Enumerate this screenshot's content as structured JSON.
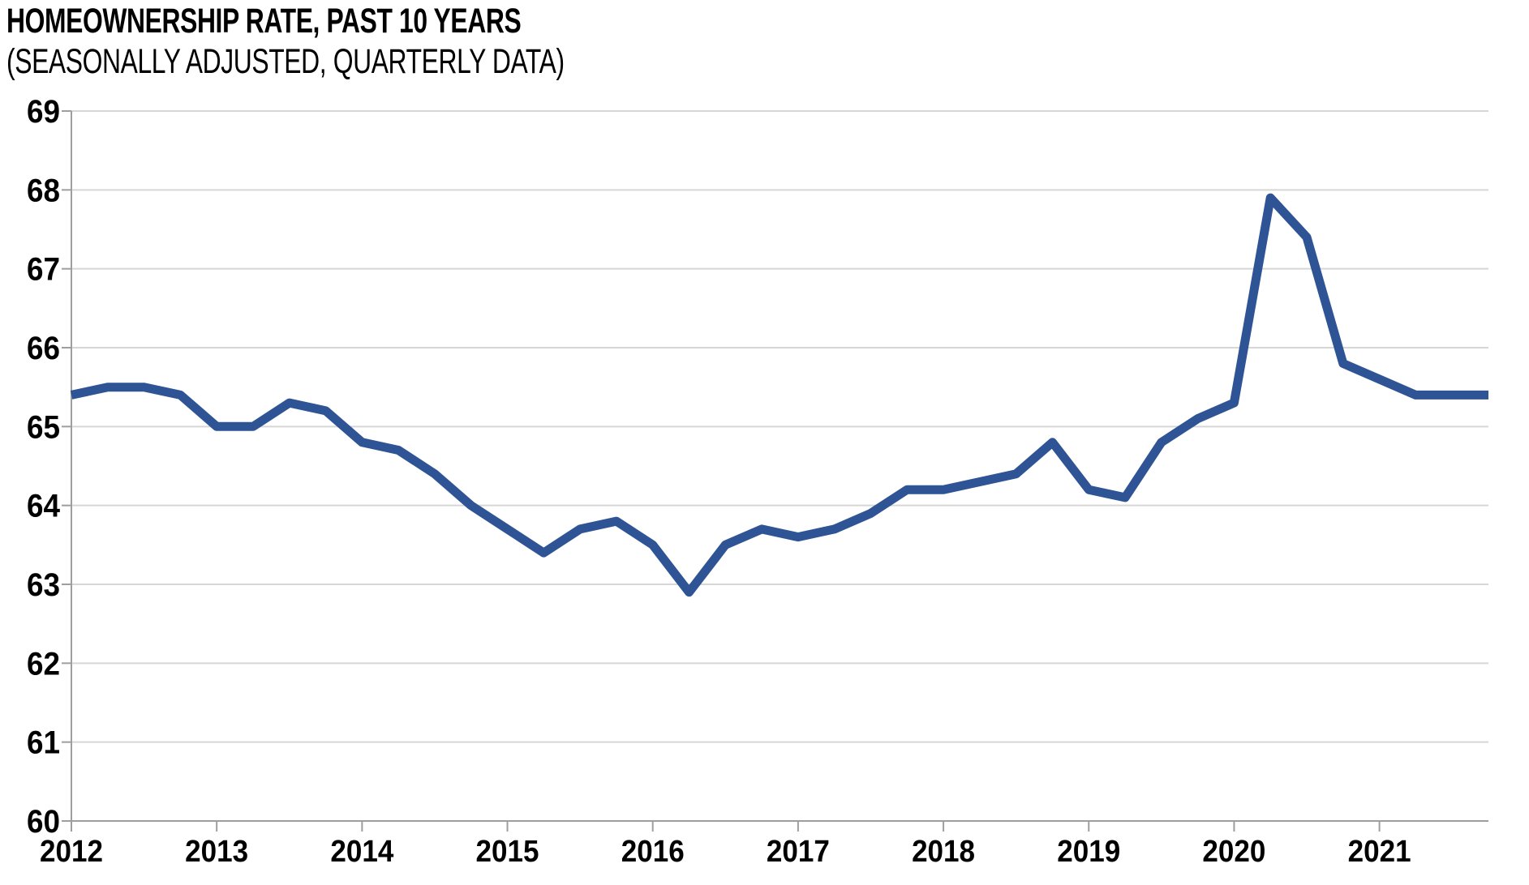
{
  "chart": {
    "title": "HOMEOWNERSHIP RATE, PAST 10 YEARS",
    "subtitle": "(SEASONALLY ADJUSTED, QUARTERLY DATA)"
  },
  "chart_data": {
    "type": "line",
    "title": "HOMEOWNERSHIP RATE, PAST 10 YEARS",
    "subtitle": "(SEASONALLY ADJUSTED, QUARTERLY DATA)",
    "unit": "percent",
    "x": [
      "2012 Q1",
      "2012 Q2",
      "2012 Q3",
      "2012 Q4",
      "2013 Q1",
      "2013 Q2",
      "2013 Q3",
      "2013 Q4",
      "2014 Q1",
      "2014 Q2",
      "2014 Q3",
      "2014 Q4",
      "2015 Q1",
      "2015 Q2",
      "2015 Q3",
      "2015 Q4",
      "2016 Q1",
      "2016 Q2",
      "2016 Q3",
      "2016 Q4",
      "2017 Q1",
      "2017 Q2",
      "2017 Q3",
      "2017 Q4",
      "2018 Q1",
      "2018 Q2",
      "2018 Q3",
      "2018 Q4",
      "2019 Q1",
      "2019 Q2",
      "2019 Q3",
      "2019 Q4",
      "2020 Q1",
      "2020 Q2",
      "2020 Q3",
      "2020 Q4",
      "2021 Q1",
      "2021 Q2",
      "2021 Q3",
      "2021 Q4"
    ],
    "series": [
      {
        "name": "Homeownership rate",
        "color": "#2F5496",
        "values": [
          65.4,
          65.5,
          65.5,
          65.4,
          65.0,
          65.0,
          65.3,
          65.2,
          64.8,
          64.7,
          64.4,
          64.0,
          63.7,
          63.4,
          63.7,
          63.8,
          63.5,
          62.9,
          63.5,
          63.7,
          63.6,
          63.7,
          63.9,
          64.2,
          64.2,
          64.3,
          64.4,
          64.8,
          64.2,
          64.1,
          64.8,
          65.1,
          65.3,
          67.9,
          67.4,
          65.8,
          65.6,
          65.4,
          65.4,
          65.4
        ]
      }
    ],
    "xlabel": "",
    "ylabel": "",
    "x_tick_labels": [
      "2012",
      "2013",
      "2014",
      "2015",
      "2016",
      "2017",
      "2018",
      "2019",
      "2020",
      "2021"
    ],
    "y_tick_labels": [
      "60",
      "61",
      "62",
      "63",
      "64",
      "65",
      "66",
      "67",
      "68",
      "69"
    ],
    "ylim": [
      60,
      69
    ],
    "y_tick_step": 1,
    "grid": true,
    "legend": false,
    "colors": {
      "line": "#2F5496",
      "gridline": "#D6D6D6",
      "axis": "#9E9E9E",
      "text": "#000000",
      "background": "#FFFFFF"
    }
  }
}
